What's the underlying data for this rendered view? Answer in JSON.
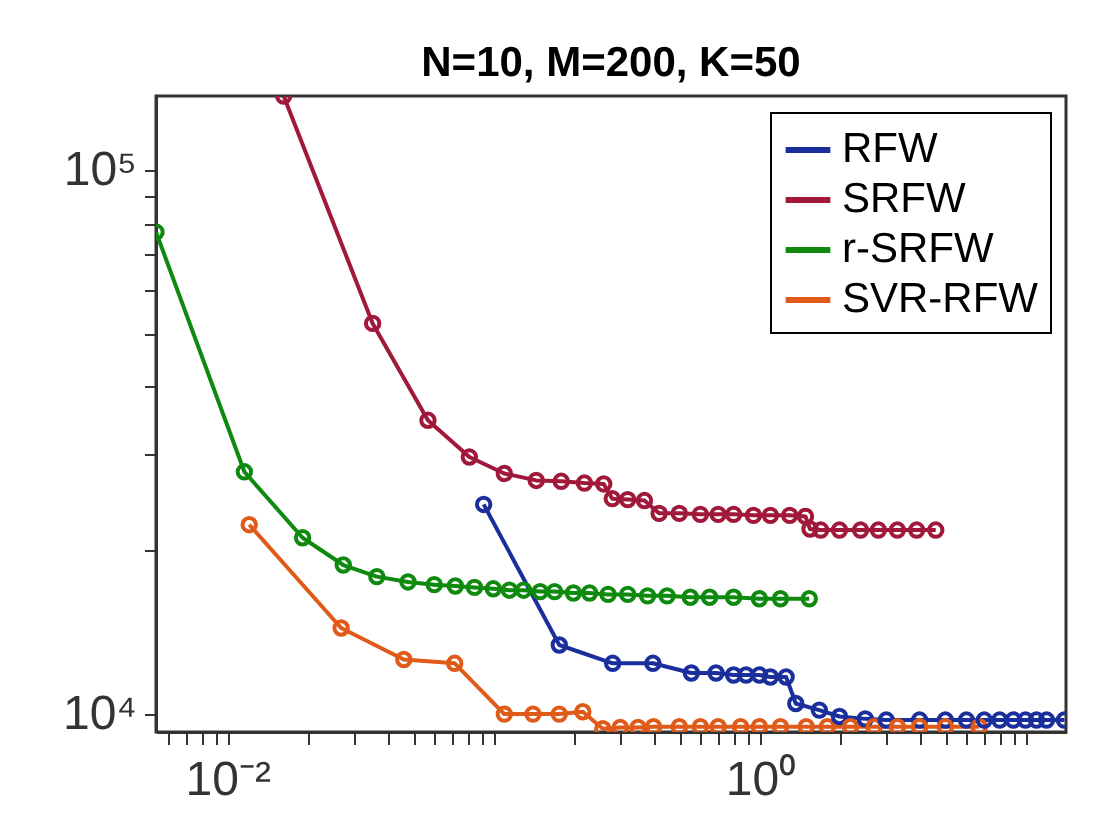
{
  "chart_data": {
    "type": "line",
    "title": "N=10, M=200, K=50",
    "log": "xy",
    "marker": "circle",
    "line_style": "solid",
    "grid": false,
    "legend": "top right",
    "xlim": [
      0.0054,
      14.2
    ],
    "ylim": [
      9270,
      137000
    ],
    "xticks": [
      {
        "value": 0.006,
        "label": null
      },
      {
        "value": 0.007,
        "label": null
      },
      {
        "value": 0.008,
        "label": null
      },
      {
        "value": 0.009,
        "label": null
      },
      {
        "value": 0.01,
        "label": "10⁻²"
      },
      {
        "value": 0.02,
        "label": null
      },
      {
        "value": 0.03,
        "label": null
      },
      {
        "value": 0.04,
        "label": null
      },
      {
        "value": 0.05,
        "label": null
      },
      {
        "value": 0.06,
        "label": null
      },
      {
        "value": 0.07,
        "label": null
      },
      {
        "value": 0.08,
        "label": null
      },
      {
        "value": 0.09,
        "label": null
      },
      {
        "value": 0.1,
        "label": null
      },
      {
        "value": 0.2,
        "label": null
      },
      {
        "value": 0.3,
        "label": null
      },
      {
        "value": 0.4,
        "label": null
      },
      {
        "value": 0.5,
        "label": null
      },
      {
        "value": 0.6,
        "label": null
      },
      {
        "value": 0.7,
        "label": null
      },
      {
        "value": 0.8,
        "label": null
      },
      {
        "value": 0.9,
        "label": null
      },
      {
        "value": 1,
        "label": "10⁰"
      },
      {
        "value": 2,
        "label": null
      },
      {
        "value": 3,
        "label": null
      },
      {
        "value": 4,
        "label": null
      },
      {
        "value": 5,
        "label": null
      },
      {
        "value": 6,
        "label": null
      },
      {
        "value": 7,
        "label": null
      },
      {
        "value": 8,
        "label": null
      },
      {
        "value": 9,
        "label": null
      },
      {
        "value": 10,
        "label": null
      }
    ],
    "yticks": [
      {
        "value": 10000,
        "label": "10⁴"
      },
      {
        "value": 20000,
        "label": null
      },
      {
        "value": 30000,
        "label": null
      },
      {
        "value": 40000,
        "label": null
      },
      {
        "value": 50000,
        "label": null
      },
      {
        "value": 60000,
        "label": null
      },
      {
        "value": 70000,
        "label": null
      },
      {
        "value": 80000,
        "label": null
      },
      {
        "value": 90000,
        "label": null
      },
      {
        "value": 100000,
        "label": "10⁵"
      }
    ],
    "series": [
      {
        "name": "RFW",
        "color": "#1a2f9c",
        "x": [
          0.092,
          0.177,
          0.281,
          0.398,
          0.555,
          0.687,
          0.8,
          0.891,
          1.0,
          1.1,
          1.26,
          1.37,
          1.68,
          2.0,
          2.5,
          3,
          4,
          5,
          6,
          7,
          8,
          9,
          10,
          11,
          12,
          14
        ],
        "values": [
          24300,
          13400,
          12400,
          12400,
          11900,
          11900,
          11800,
          11800,
          11800,
          11700,
          11700,
          10460,
          10170,
          9900,
          9800,
          9750,
          9750,
          9750,
          9750,
          9750,
          9750,
          9750,
          9750,
          9750,
          9750,
          9750
        ]
      },
      {
        "name": "SRFW",
        "color": "#a0183a",
        "x": [
          0.0163,
          0.0352,
          0.0568,
          0.0813,
          0.11,
          0.145,
          0.18,
          0.22,
          0.26,
          0.28,
          0.32,
          0.37,
          0.42,
          0.5,
          0.6,
          0.7,
          0.8,
          0.95,
          1.1,
          1.3,
          1.49,
          1.55,
          1.7,
          2.0,
          2.4,
          2.8,
          3.3,
          3.9,
          4.6
        ],
        "values": [
          137000,
          52300,
          34700,
          29700,
          27700,
          26900,
          26800,
          26600,
          26500,
          24900,
          24800,
          24700,
          23400,
          23400,
          23300,
          23300,
          23300,
          23200,
          23200,
          23200,
          23100,
          21900,
          21800,
          21800,
          21800,
          21800,
          21800,
          21800,
          21800
        ]
      },
      {
        "name": "r-SRFW",
        "color": "#0f8a0f",
        "x": [
          0.0054,
          0.0116,
          0.0192,
          0.0273,
          0.0365,
          0.0478,
          0.06,
          0.072,
          0.085,
          0.1,
          0.115,
          0.13,
          0.15,
          0.17,
          0.2,
          0.23,
          0.27,
          0.32,
          0.38,
          0.45,
          0.55,
          0.65,
          0.8,
          1.0,
          1.2,
          1.54
        ],
        "values": [
          77000,
          27900,
          21100,
          18800,
          17900,
          17500,
          17300,
          17200,
          17100,
          17000,
          16900,
          16900,
          16800,
          16800,
          16700,
          16700,
          16600,
          16600,
          16500,
          16500,
          16400,
          16400,
          16400,
          16300,
          16300,
          16300
        ]
      },
      {
        "name": "SVR-RFW",
        "color": "#e05a1a",
        "x": [
          0.0121,
          0.0268,
          0.0461,
          0.0716,
          0.11,
          0.141,
          0.177,
          0.217,
          0.258,
          0.3,
          0.35,
          0.4,
          0.5,
          0.6,
          0.7,
          0.85,
          1.0,
          1.2,
          1.5,
          1.8,
          2.2,
          2.7,
          3.3,
          4,
          5,
          6.7
        ],
        "values": [
          22300,
          14400,
          12600,
          12400,
          10000,
          10000,
          10000,
          10100,
          9400,
          9450,
          9450,
          9480,
          9480,
          9480,
          9480,
          9480,
          9480,
          9480,
          9480,
          9480,
          9480,
          9480,
          9480,
          9480,
          9480,
          9480
        ]
      }
    ]
  }
}
